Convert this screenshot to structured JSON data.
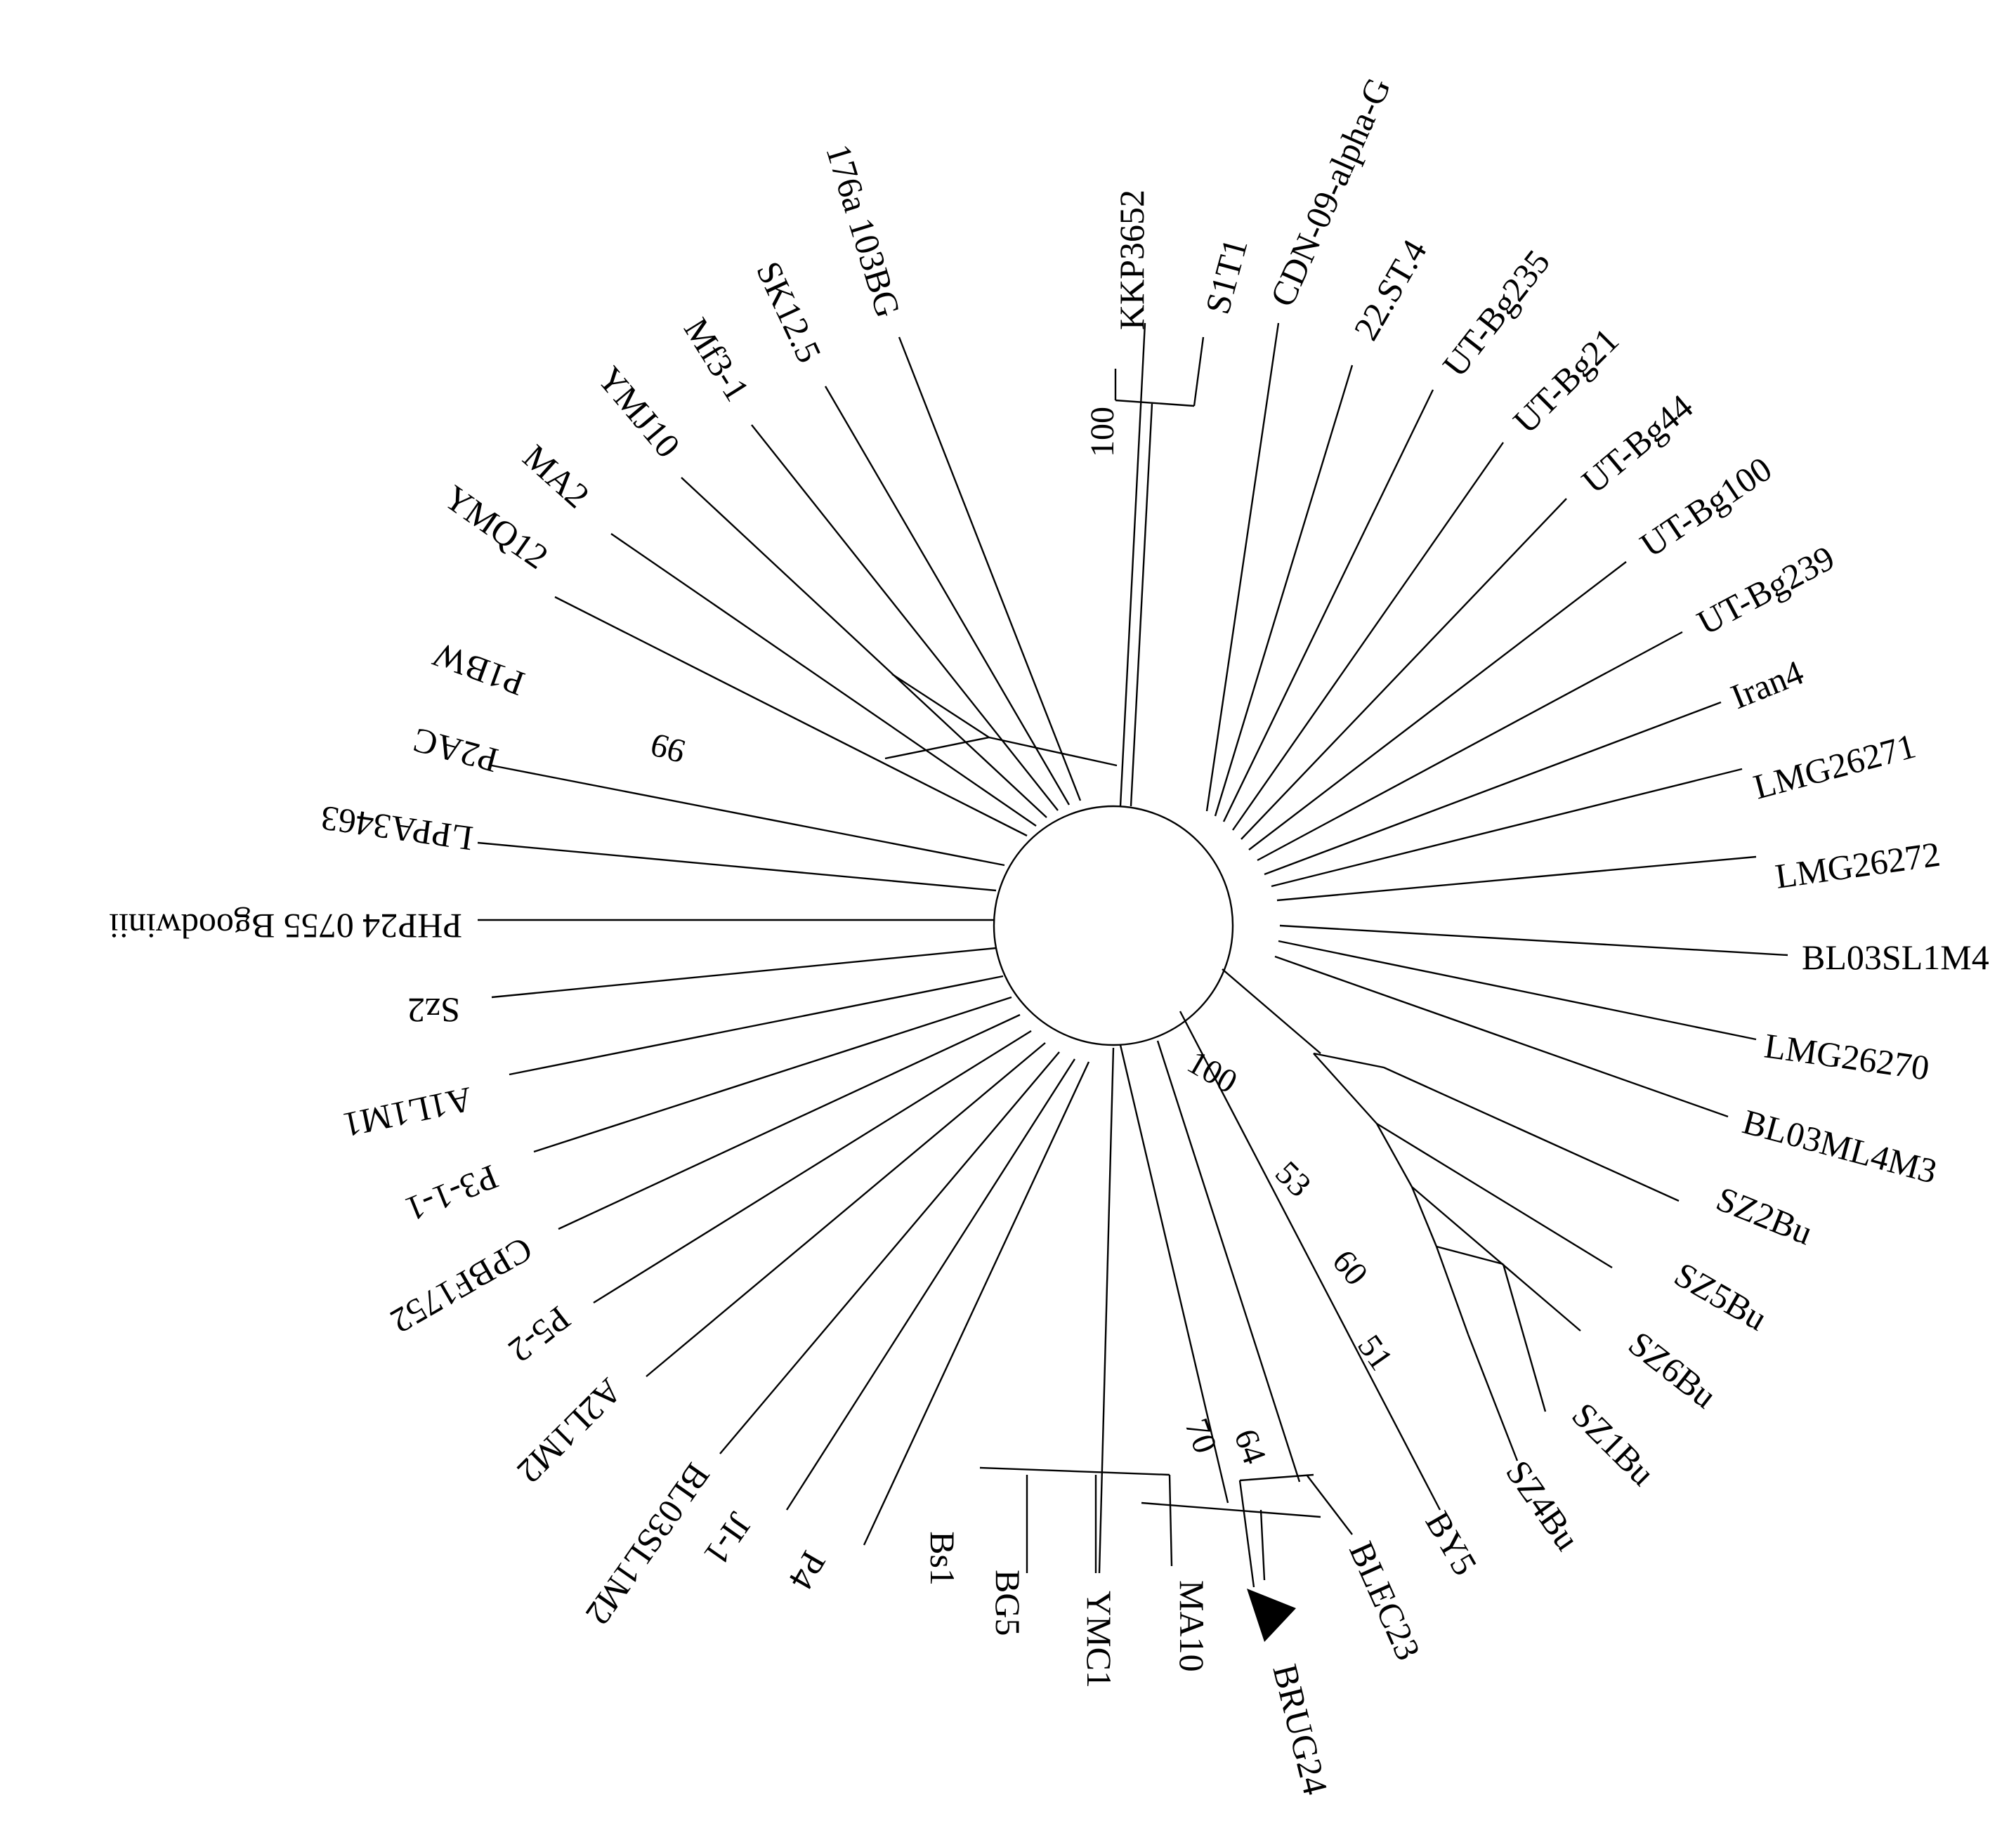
{
  "tree": {
    "taxa": [
      "KKP3652",
      "S1T1",
      "CDN-09-alpha-G",
      "22.ST.4",
      "UT-Bg235",
      "UT-Bg21",
      "UT-Bg44",
      "UT-Bg100",
      "UT-Bg239",
      "Iran4",
      "LMG26271",
      "LMG26272",
      "BL03SL1M4",
      "LMG26270",
      "BL03ML4M3",
      "SZ2Bu",
      "SZ5Bu",
      "SZ6Bu",
      "SZ1Bu",
      "SZ4Bu",
      "BY5",
      "BLEC23",
      "BRUG24",
      "MA10",
      "YMC1",
      "BG5",
      "Bs1",
      "P4",
      "JI-1",
      "BL03SL1M2",
      "A2L1M2",
      "P5-2",
      "CPBF1752",
      "P3-1-1",
      "A1L1M1",
      "Sz2",
      "PHP24 0755 Bgoodwinii",
      "LPPA3463",
      "P2AC",
      "P1BW",
      "YMQ12",
      "MA2",
      "YMJ10",
      "Mf3-1",
      "SK12.5",
      "176a 103BG"
    ],
    "bootstrap": {
      "kkp_s1t1": "100",
      "p1bw_p2ac": "99",
      "sz_outer": "100",
      "sz_mid": "53",
      "sz_inner": "60",
      "sz_core": "51",
      "blec_brug": "64",
      "bg5_ma10": "70"
    },
    "marked_taxon_icon": "triangle-marker-icon"
  }
}
